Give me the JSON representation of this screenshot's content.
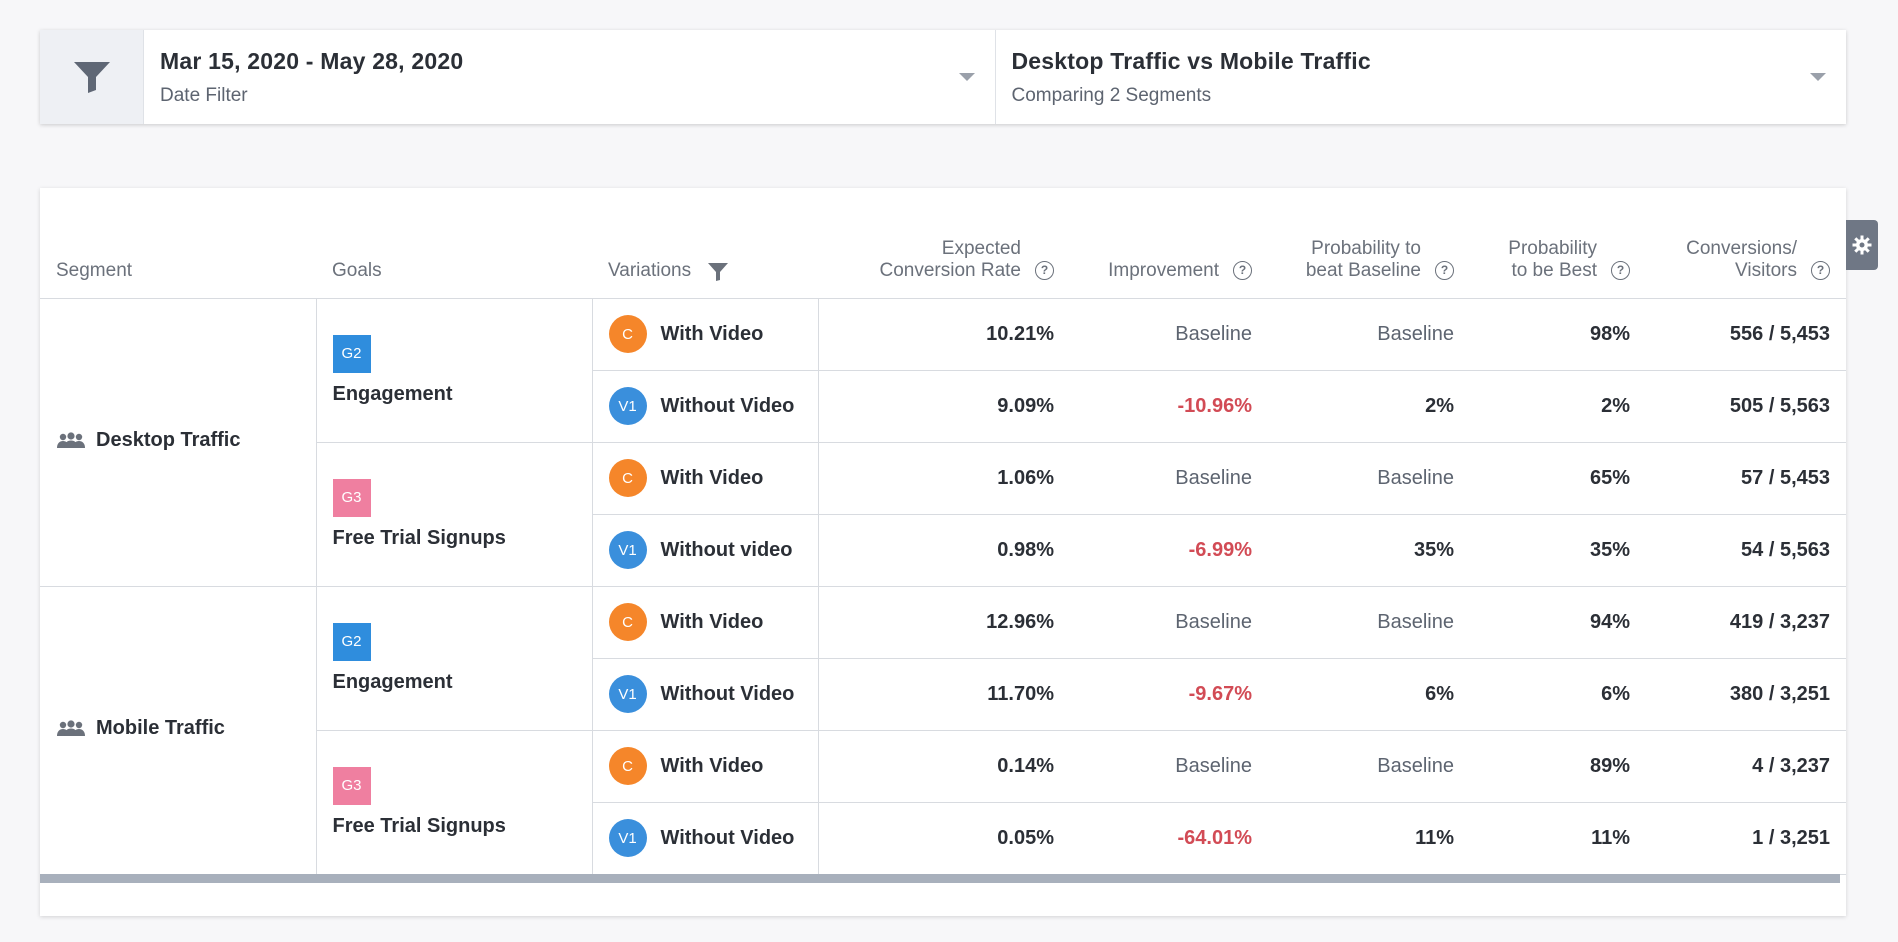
{
  "filters": {
    "date": {
      "title": "Mar 15, 2020 - May 28, 2020",
      "subtitle": "Date Filter"
    },
    "segments": {
      "title": "Desktop Traffic vs Mobile Traffic",
      "subtitle": "Comparing 2 Segments"
    }
  },
  "table": {
    "headers": {
      "segment": "Segment",
      "goals": "Goals",
      "variations": "Variations",
      "ecr": [
        "Expected",
        "Conversion Rate"
      ],
      "improvement": "Improvement",
      "ptbb": [
        "Probability to",
        "beat Baseline"
      ],
      "ptbb_best": [
        "Probability",
        "to be Best"
      ],
      "conv": [
        "Conversions/",
        "Visitors"
      ]
    },
    "help_glyph": "?",
    "segments": [
      {
        "name": "Desktop Traffic",
        "goals": [
          {
            "badge": "G2",
            "badge_color": "#2f8ddd",
            "name": "Engagement",
            "rows": [
              {
                "badge": "C",
                "badge_color": "#f5862a",
                "name": "With Video",
                "ecr": "10.21%",
                "improvement": "Baseline",
                "ptbb": "Baseline",
                "ptbe": "98%",
                "conv": "556 / 5,453"
              },
              {
                "badge": "V1",
                "badge_color": "#3a8fdc",
                "name": "Without Video",
                "ecr": "9.09%",
                "improvement": "-10.96%",
                "ptbb": "2%",
                "ptbe": "2%",
                "conv": "505 / 5,563"
              }
            ]
          },
          {
            "badge": "G3",
            "badge_color": "#ef7fa0",
            "name": "Free Trial Signups",
            "rows": [
              {
                "badge": "C",
                "badge_color": "#f5862a",
                "name": "With Video",
                "ecr": "1.06%",
                "improvement": "Baseline",
                "ptbb": "Baseline",
                "ptbe": "65%",
                "conv": "57 / 5,453"
              },
              {
                "badge": "V1",
                "badge_color": "#3a8fdc",
                "name": "Without video",
                "ecr": "0.98%",
                "improvement": "-6.99%",
                "ptbb": "35%",
                "ptbe": "35%",
                "conv": "54 / 5,563"
              }
            ]
          }
        ]
      },
      {
        "name": "Mobile Traffic",
        "goals": [
          {
            "badge": "G2",
            "badge_color": "#2f8ddd",
            "name": "Engagement",
            "rows": [
              {
                "badge": "C",
                "badge_color": "#f5862a",
                "name": "With Video",
                "ecr": "12.96%",
                "improvement": "Baseline",
                "ptbb": "Baseline",
                "ptbe": "94%",
                "conv": "419 / 3,237"
              },
              {
                "badge": "V1",
                "badge_color": "#3a8fdc",
                "name": "Without Video",
                "ecr": "11.70%",
                "improvement": "-9.67%",
                "ptbb": "6%",
                "ptbe": "6%",
                "conv": "380 / 3,251"
              }
            ]
          },
          {
            "badge": "G3",
            "badge_color": "#ef7fa0",
            "name": "Free Trial Signups",
            "rows": [
              {
                "badge": "C",
                "badge_color": "#f5862a",
                "name": "With Video",
                "ecr": "0.14%",
                "improvement": "Baseline",
                "ptbb": "Baseline",
                "ptbe": "89%",
                "conv": "4 / 3,237"
              },
              {
                "badge": "V1",
                "badge_color": "#3a8fdc",
                "name": "Without Video",
                "ecr": "0.05%",
                "improvement": "-64.01%",
                "ptbb": "11%",
                "ptbe": "11%",
                "conv": "1 / 3,251"
              }
            ]
          }
        ]
      }
    ]
  }
}
